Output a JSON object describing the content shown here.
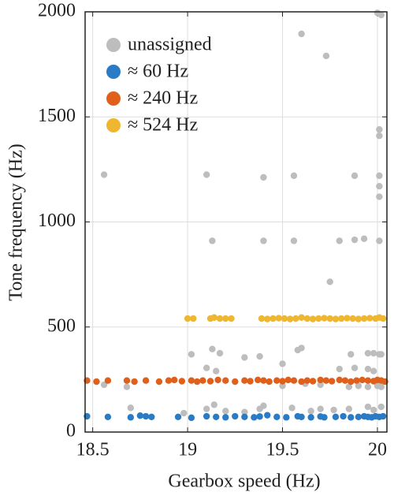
{
  "chart_data": {
    "type": "scatter",
    "x_label": "Gearbox speed (Hz)",
    "y_label": "Tone frequency (Hz)",
    "xlim": [
      18.46,
      20.05
    ],
    "ylim": [
      0,
      2000
    ],
    "xticks": [
      18.5,
      19,
      19.5,
      20
    ],
    "yticks": [
      0,
      500,
      1000,
      1500,
      2000
    ],
    "grid": true,
    "legend": "upper left",
    "series": [
      {
        "name": "unassigned",
        "color": "#bdbdbd",
        "x": [
          18.56,
          19.1,
          19.4,
          19.56,
          19.88,
          20.01,
          19.6,
          19.73,
          20,
          20.02,
          20.01,
          20.01,
          20.01,
          20.01,
          19.13,
          19.4,
          19.56,
          19.8,
          19.88,
          19.93,
          20.01,
          19.75,
          19.02,
          19.13,
          19.17,
          19.3,
          19.38,
          19.58,
          19.6,
          19.86,
          19.95,
          19.98,
          20.01,
          20.02,
          19.5,
          19.1,
          19.15,
          19.8,
          19.88,
          19.95,
          19.98,
          19.5,
          19.62,
          19.7,
          19.85,
          19.9,
          19.95,
          20.0,
          20.02,
          18.56,
          18.68,
          19.14,
          19.1,
          19.2,
          19.38,
          19.4,
          19.55,
          19.7,
          19.77,
          19.85,
          19.95,
          19.98,
          18.98,
          18.7,
          19.3,
          19.65,
          20.02
        ],
        "y": [
          1225,
          1225,
          1212,
          1220,
          1220,
          1220,
          1895,
          1790,
          1995,
          1985,
          1440,
          1410,
          1120,
          1170,
          910,
          910,
          910,
          910,
          915,
          920,
          910,
          715,
          370,
          395,
          375,
          355,
          360,
          390,
          400,
          370,
          375,
          375,
          370,
          370,
          325,
          305,
          290,
          300,
          305,
          300,
          290,
          220,
          230,
          225,
          215,
          220,
          215,
          220,
          215,
          225,
          215,
          130,
          110,
          100,
          110,
          125,
          115,
          110,
          105,
          110,
          120,
          105,
          90,
          115,
          95,
          100,
          120
        ]
      },
      {
        "name": "≈ 60 Hz",
        "color": "#2a7bc6",
        "x": [
          18.47,
          18.58,
          18.7,
          18.75,
          18.78,
          18.81,
          18.95,
          19.02,
          19.1,
          19.15,
          19.2,
          19.25,
          19.3,
          19.35,
          19.38,
          19.42,
          19.47,
          19.52,
          19.58,
          19.6,
          19.65,
          19.7,
          19.72,
          19.78,
          19.82,
          19.86,
          19.9,
          19.93,
          19.95,
          19.97,
          19.99,
          20.01,
          20.03
        ],
        "y": [
          75,
          72,
          70,
          78,
          75,
          72,
          72,
          68,
          75,
          72,
          70,
          75,
          72,
          70,
          74,
          80,
          72,
          70,
          75,
          72,
          70,
          74,
          70,
          72,
          75,
          70,
          72,
          75,
          72,
          70,
          75,
          72,
          75
        ]
      },
      {
        "name": "≈ 240 Hz",
        "color": "#e0601b",
        "x": [
          18.47,
          18.52,
          18.58,
          18.68,
          18.72,
          18.78,
          18.85,
          18.9,
          18.93,
          18.97,
          19.02,
          19.05,
          19.08,
          19.12,
          19.16,
          19.2,
          19.25,
          19.3,
          19.33,
          19.37,
          19.4,
          19.43,
          19.47,
          19.5,
          19.53,
          19.56,
          19.6,
          19.63,
          19.66,
          19.7,
          19.73,
          19.76,
          19.8,
          19.83,
          19.86,
          19.89,
          19.92,
          19.95,
          19.98,
          20.0,
          20.02,
          20.04
        ],
        "y": [
          245,
          240,
          245,
          245,
          240,
          245,
          240,
          245,
          248,
          242,
          245,
          240,
          245,
          242,
          248,
          245,
          240,
          245,
          242,
          248,
          245,
          240,
          245,
          242,
          248,
          245,
          240,
          245,
          242,
          248,
          245,
          242,
          248,
          245,
          240,
          245,
          248,
          245,
          242,
          248,
          245,
          240
        ]
      },
      {
        "name": "≈ 524 Hz",
        "color": "#efb630",
        "x": [
          19.0,
          19.03,
          19.12,
          19.14,
          19.17,
          19.2,
          19.23,
          19.39,
          19.42,
          19.45,
          19.48,
          19.51,
          19.54,
          19.57,
          19.6,
          19.63,
          19.66,
          19.69,
          19.72,
          19.75,
          19.78,
          19.81,
          19.84,
          19.87,
          19.9,
          19.93,
          19.96,
          19.99,
          20.01,
          20.03
        ],
        "y": [
          540,
          540,
          540,
          545,
          540,
          540,
          540,
          540,
          538,
          540,
          542,
          540,
          538,
          540,
          545,
          540,
          538,
          540,
          542,
          540,
          538,
          540,
          542,
          540,
          538,
          540,
          542,
          540,
          545,
          540
        ]
      }
    ]
  }
}
